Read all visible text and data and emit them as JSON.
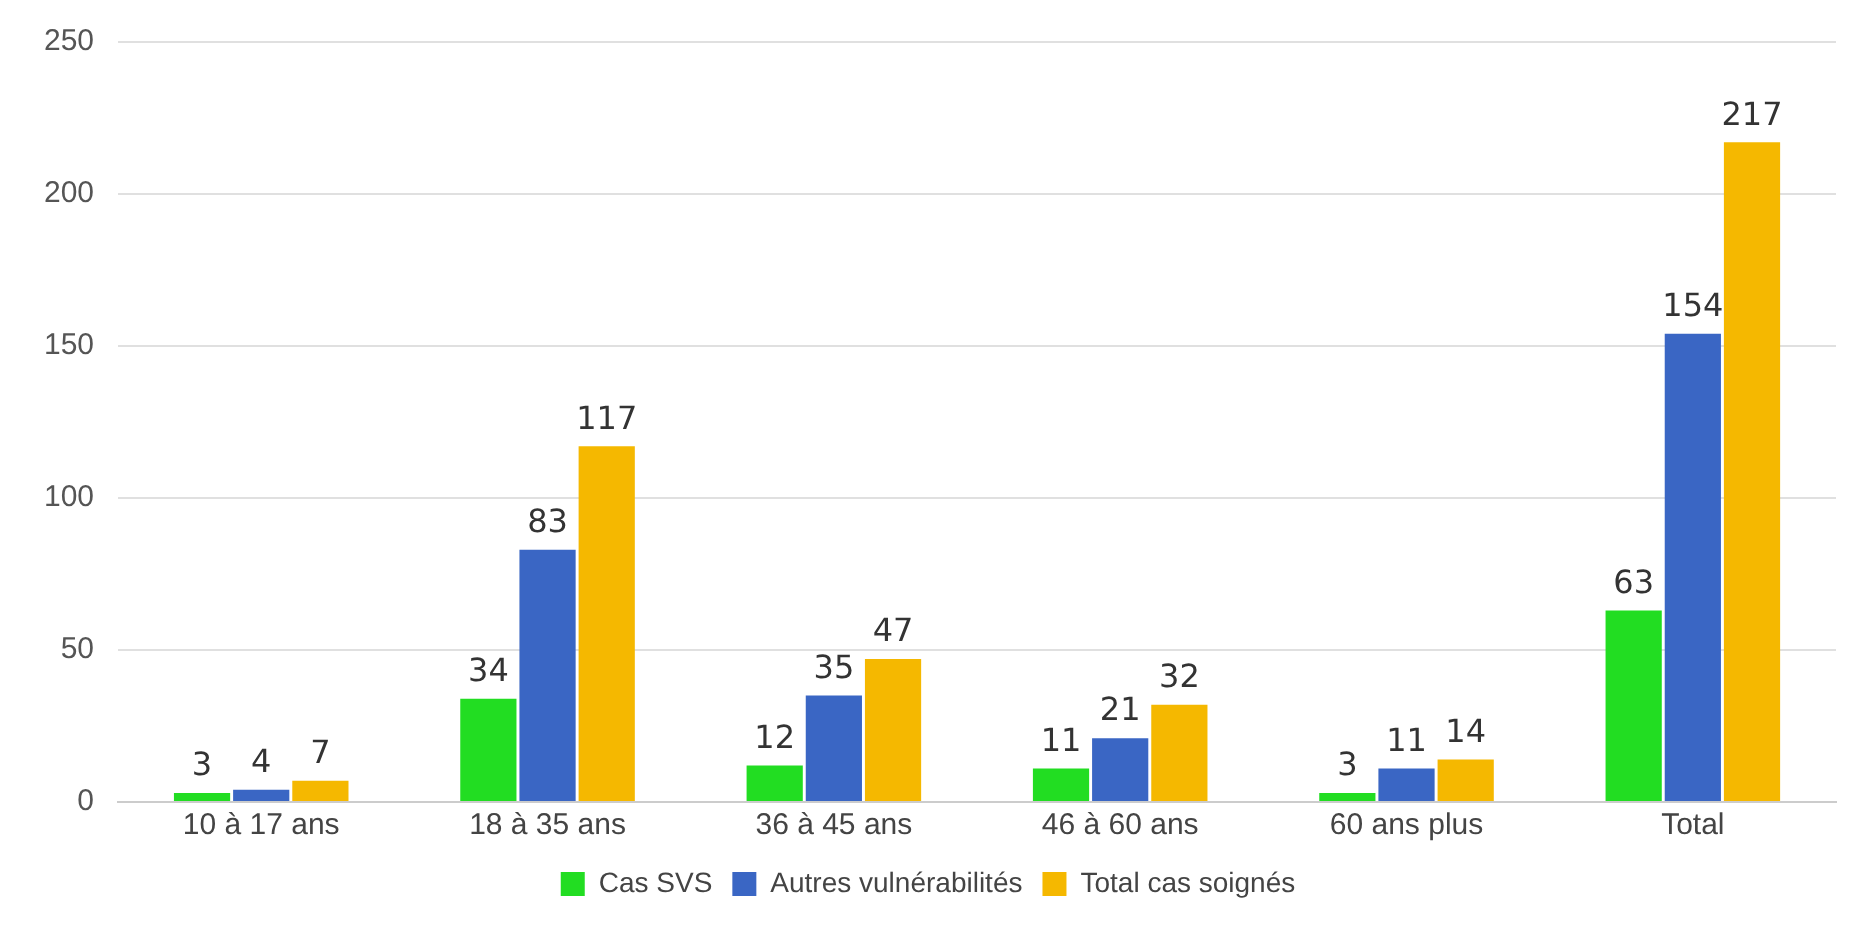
{
  "chart_data": {
    "type": "bar",
    "categories": [
      "10 à 17 ans",
      "18 à 35 ans",
      "36 à 45 ans",
      "46 à 60 ans",
      "60 ans plus",
      "Total"
    ],
    "series": [
      {
        "name": "Cas SVS",
        "color": "#22dd22",
        "values": [
          3,
          34,
          12,
          11,
          3,
          63
        ]
      },
      {
        "name": "Autres vulnérabilités",
        "color": "#3a66c4",
        "values": [
          4,
          83,
          35,
          21,
          11,
          154
        ]
      },
      {
        "name": "Total cas soignés",
        "color": "#f5b800",
        "values": [
          7,
          117,
          47,
          32,
          14,
          217
        ]
      }
    ],
    "ylim": [
      0,
      250
    ],
    "yticks": [
      0,
      50,
      100,
      150,
      200,
      250
    ],
    "grid": "y",
    "legend": "bottom",
    "data_labels": true
  }
}
